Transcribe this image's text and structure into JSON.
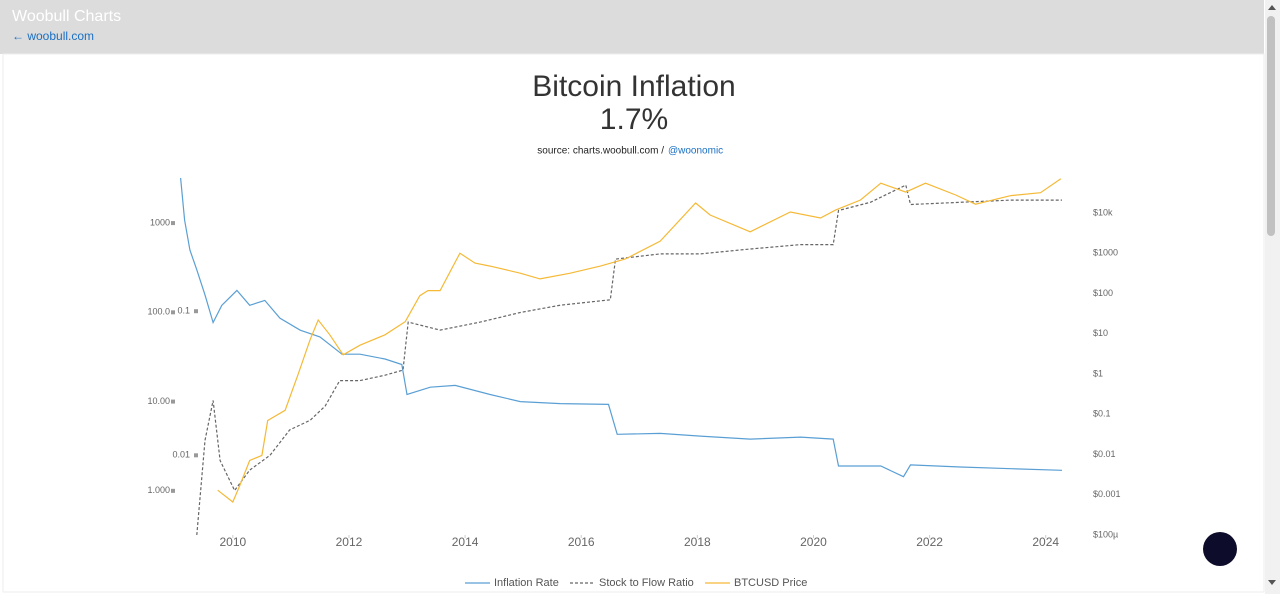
{
  "header": {
    "title": "Woobull Charts",
    "link": "← woobull.com"
  },
  "chart_data": {
    "type": "line",
    "title": "Bitcoin Inflation",
    "subtitle": "1.7%",
    "source": "source: charts.woobull.com /",
    "source_link": "@woonomic",
    "legend": "bottom",
    "log_scale": true,
    "xlim": [
      2009.09,
      2024.28
    ],
    "xticks": [
      2010,
      2012,
      2014,
      2016,
      2018,
      2020,
      2022,
      2024
    ],
    "ylim": [
      0.32,
      3200
    ],
    "yticks": [
      {
        "value": 1,
        "label": "1.000"
      },
      {
        "value": 10,
        "label": "10.00"
      },
      {
        "value": 100,
        "label": "100.0"
      },
      1000
    ],
    "y2lim": [
      0.0001,
      74000
    ],
    "y2ticks": [
      {
        "value": 0.0001,
        "label": "$100µ"
      },
      {
        "value": 0.001,
        "label": "$0.001"
      },
      {
        "value": 0.01,
        "label": "$0.01"
      },
      {
        "value": 0.1,
        "label": "$0.1"
      },
      {
        "value": 1,
        "label": "$1"
      },
      {
        "value": 10,
        "label": "$10"
      },
      {
        "value": 100,
        "label": "$100"
      },
      {
        "value": 1000,
        "label": "$1000"
      },
      {
        "value": 10000,
        "label": "$10k"
      }
    ],
    "y3lim": [
      0.0028,
      0.84
    ],
    "y3ticks": [
      0.01,
      0.1
    ],
    "series": [
      {
        "name": "Inflation Rate",
        "color": "#5a9fd4",
        "axis": "y",
        "x": [
          2009.1,
          2009.17,
          2009.26,
          2009.38,
          2009.52,
          2009.66,
          2009.81,
          2010.07,
          2010.29,
          2010.55,
          2010.81,
          2011.16,
          2011.5,
          2011.88,
          2012.19,
          2012.62,
          2012.91,
          2013.0,
          2013.4,
          2013.83,
          2014.43,
          2014.95,
          2015.64,
          2016.47,
          2016.62,
          2017.36,
          2018.05,
          2018.91,
          2019.78,
          2020.34,
          2020.43,
          2021.16,
          2021.55,
          2021.67,
          2022.53,
          2023.4,
          2024.28
        ],
        "values": [
          3200,
          1080,
          500,
          300,
          157,
          77,
          120,
          176,
          120,
          136,
          86,
          63,
          53,
          34,
          34,
          30,
          26,
          12,
          14.5,
          15.2,
          12,
          10,
          9.5,
          9.3,
          4.3,
          4.4,
          4.1,
          3.8,
          4.0,
          3.8,
          1.9,
          1.9,
          1.44,
          1.95,
          1.85,
          1.77,
          1.7
        ]
      },
      {
        "name": "Stock to Flow Ratio",
        "color": "#666666",
        "axis": "y3",
        "dashed": true,
        "x": [
          2009.38,
          2009.52,
          2009.66,
          2009.78,
          2010.03,
          2010.29,
          2010.64,
          2010.98,
          2011.33,
          2011.59,
          2011.84,
          2012.19,
          2012.62,
          2012.93,
          2013.02,
          2013.57,
          2014.26,
          2014.95,
          2015.64,
          2016.5,
          2016.59,
          2017.36,
          2018.05,
          2018.91,
          2019.78,
          2020.34,
          2020.43,
          2020.98,
          2021.59,
          2021.67,
          2022.53,
          2023.4,
          2024.28
        ],
        "values": [
          0.0028,
          0.0127,
          0.024,
          0.0092,
          0.0057,
          0.0079,
          0.01,
          0.015,
          0.0175,
          0.022,
          0.033,
          0.033,
          0.036,
          0.039,
          0.084,
          0.074,
          0.084,
          0.098,
          0.11,
          0.12,
          0.23,
          0.25,
          0.25,
          0.27,
          0.29,
          0.29,
          0.5,
          0.57,
          0.75,
          0.55,
          0.57,
          0.59,
          0.59
        ]
      },
      {
        "name": "BTCUSD Price",
        "color": "#f5b936",
        "axis": "y2",
        "x": [
          2009.74,
          2010.0,
          2010.12,
          2010.29,
          2010.5,
          2010.6,
          2010.9,
          2011.12,
          2011.33,
          2011.47,
          2011.67,
          2011.9,
          2012.19,
          2012.62,
          2012.97,
          2013.22,
          2013.36,
          2013.57,
          2013.91,
          2014.17,
          2014.43,
          2014.95,
          2015.29,
          2015.81,
          2016.33,
          2016.76,
          2017.36,
          2017.97,
          2018.22,
          2018.91,
          2019.6,
          2020.12,
          2020.38,
          2020.81,
          2021.16,
          2021.59,
          2021.93,
          2022.45,
          2022.79,
          2023.4,
          2023.91,
          2024.26
        ],
        "values": [
          0.0013,
          0.00066,
          0.0017,
          0.0071,
          0.0095,
          0.07,
          0.125,
          0.95,
          7.1,
          22,
          9.4,
          3,
          5.2,
          9.4,
          20,
          88,
          118,
          118,
          1000,
          570,
          480,
          320,
          230,
          320,
          480,
          720,
          2000,
          17700,
          8900,
          3400,
          10600,
          7500,
          11800,
          21000,
          55000,
          33000,
          55000,
          28000,
          16500,
          27000,
          32000,
          71000
        ]
      }
    ]
  }
}
